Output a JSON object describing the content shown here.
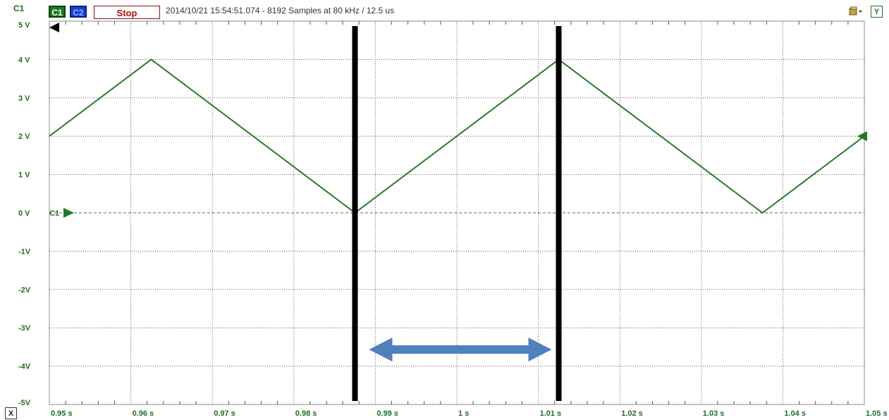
{
  "toolbar": {
    "channel_label": "C1",
    "c1_button": "C1",
    "c2_button": "C2",
    "stop_label": "Stop",
    "status": "2014/10/21 15:54:51.074 - 8192 Samples at 80 kHz / 12.5 us",
    "y_button": "Y",
    "x_button": "X",
    "tool_icon": "measurement-tool-icon"
  },
  "marker": {
    "channel_marker_label": "C1"
  },
  "colors": {
    "trace": "#2a7a2a",
    "axis_text": "#1f6e1f",
    "cursor": "#000000",
    "arrow": "#4f81bd",
    "c1": "#1f7a1f",
    "c2": "#1d3fd8",
    "stop_text": "#b01010"
  },
  "chart_data": {
    "type": "line",
    "xlim": [
      0.95,
      1.05
    ],
    "ylim": [
      -5,
      5
    ],
    "y_tick_labels": [
      "5 V",
      "4 V",
      "3 V",
      "2 V",
      "1 V",
      "0 V",
      "-1V",
      "-2V",
      "-3V",
      "-4V",
      "-5V"
    ],
    "y_ticks": [
      5,
      4,
      3,
      2,
      1,
      0,
      -1,
      -2,
      -3,
      -4,
      -5
    ],
    "x_tick_labels": [
      "0.95 s",
      "0.96 s",
      "0.97 s",
      "0.98 s",
      "0.99 s",
      "1 s",
      "1.01 s",
      "1.02 s",
      "1.03 s",
      "1.04 s",
      "1.05 s"
    ],
    "x_ticks": [
      0.95,
      0.96,
      0.97,
      0.98,
      0.99,
      1.0,
      1.01,
      1.02,
      1.03,
      1.04,
      1.05
    ],
    "grid": true,
    "series": [
      {
        "x": [
          0.95,
          0.9625,
          0.9875,
          1.0125,
          1.0375,
          1.05
        ],
        "y": [
          2,
          4,
          0,
          4,
          0,
          2
        ]
      }
    ],
    "cursors": [
      0.9875,
      1.0125
    ],
    "baseline": 0
  }
}
